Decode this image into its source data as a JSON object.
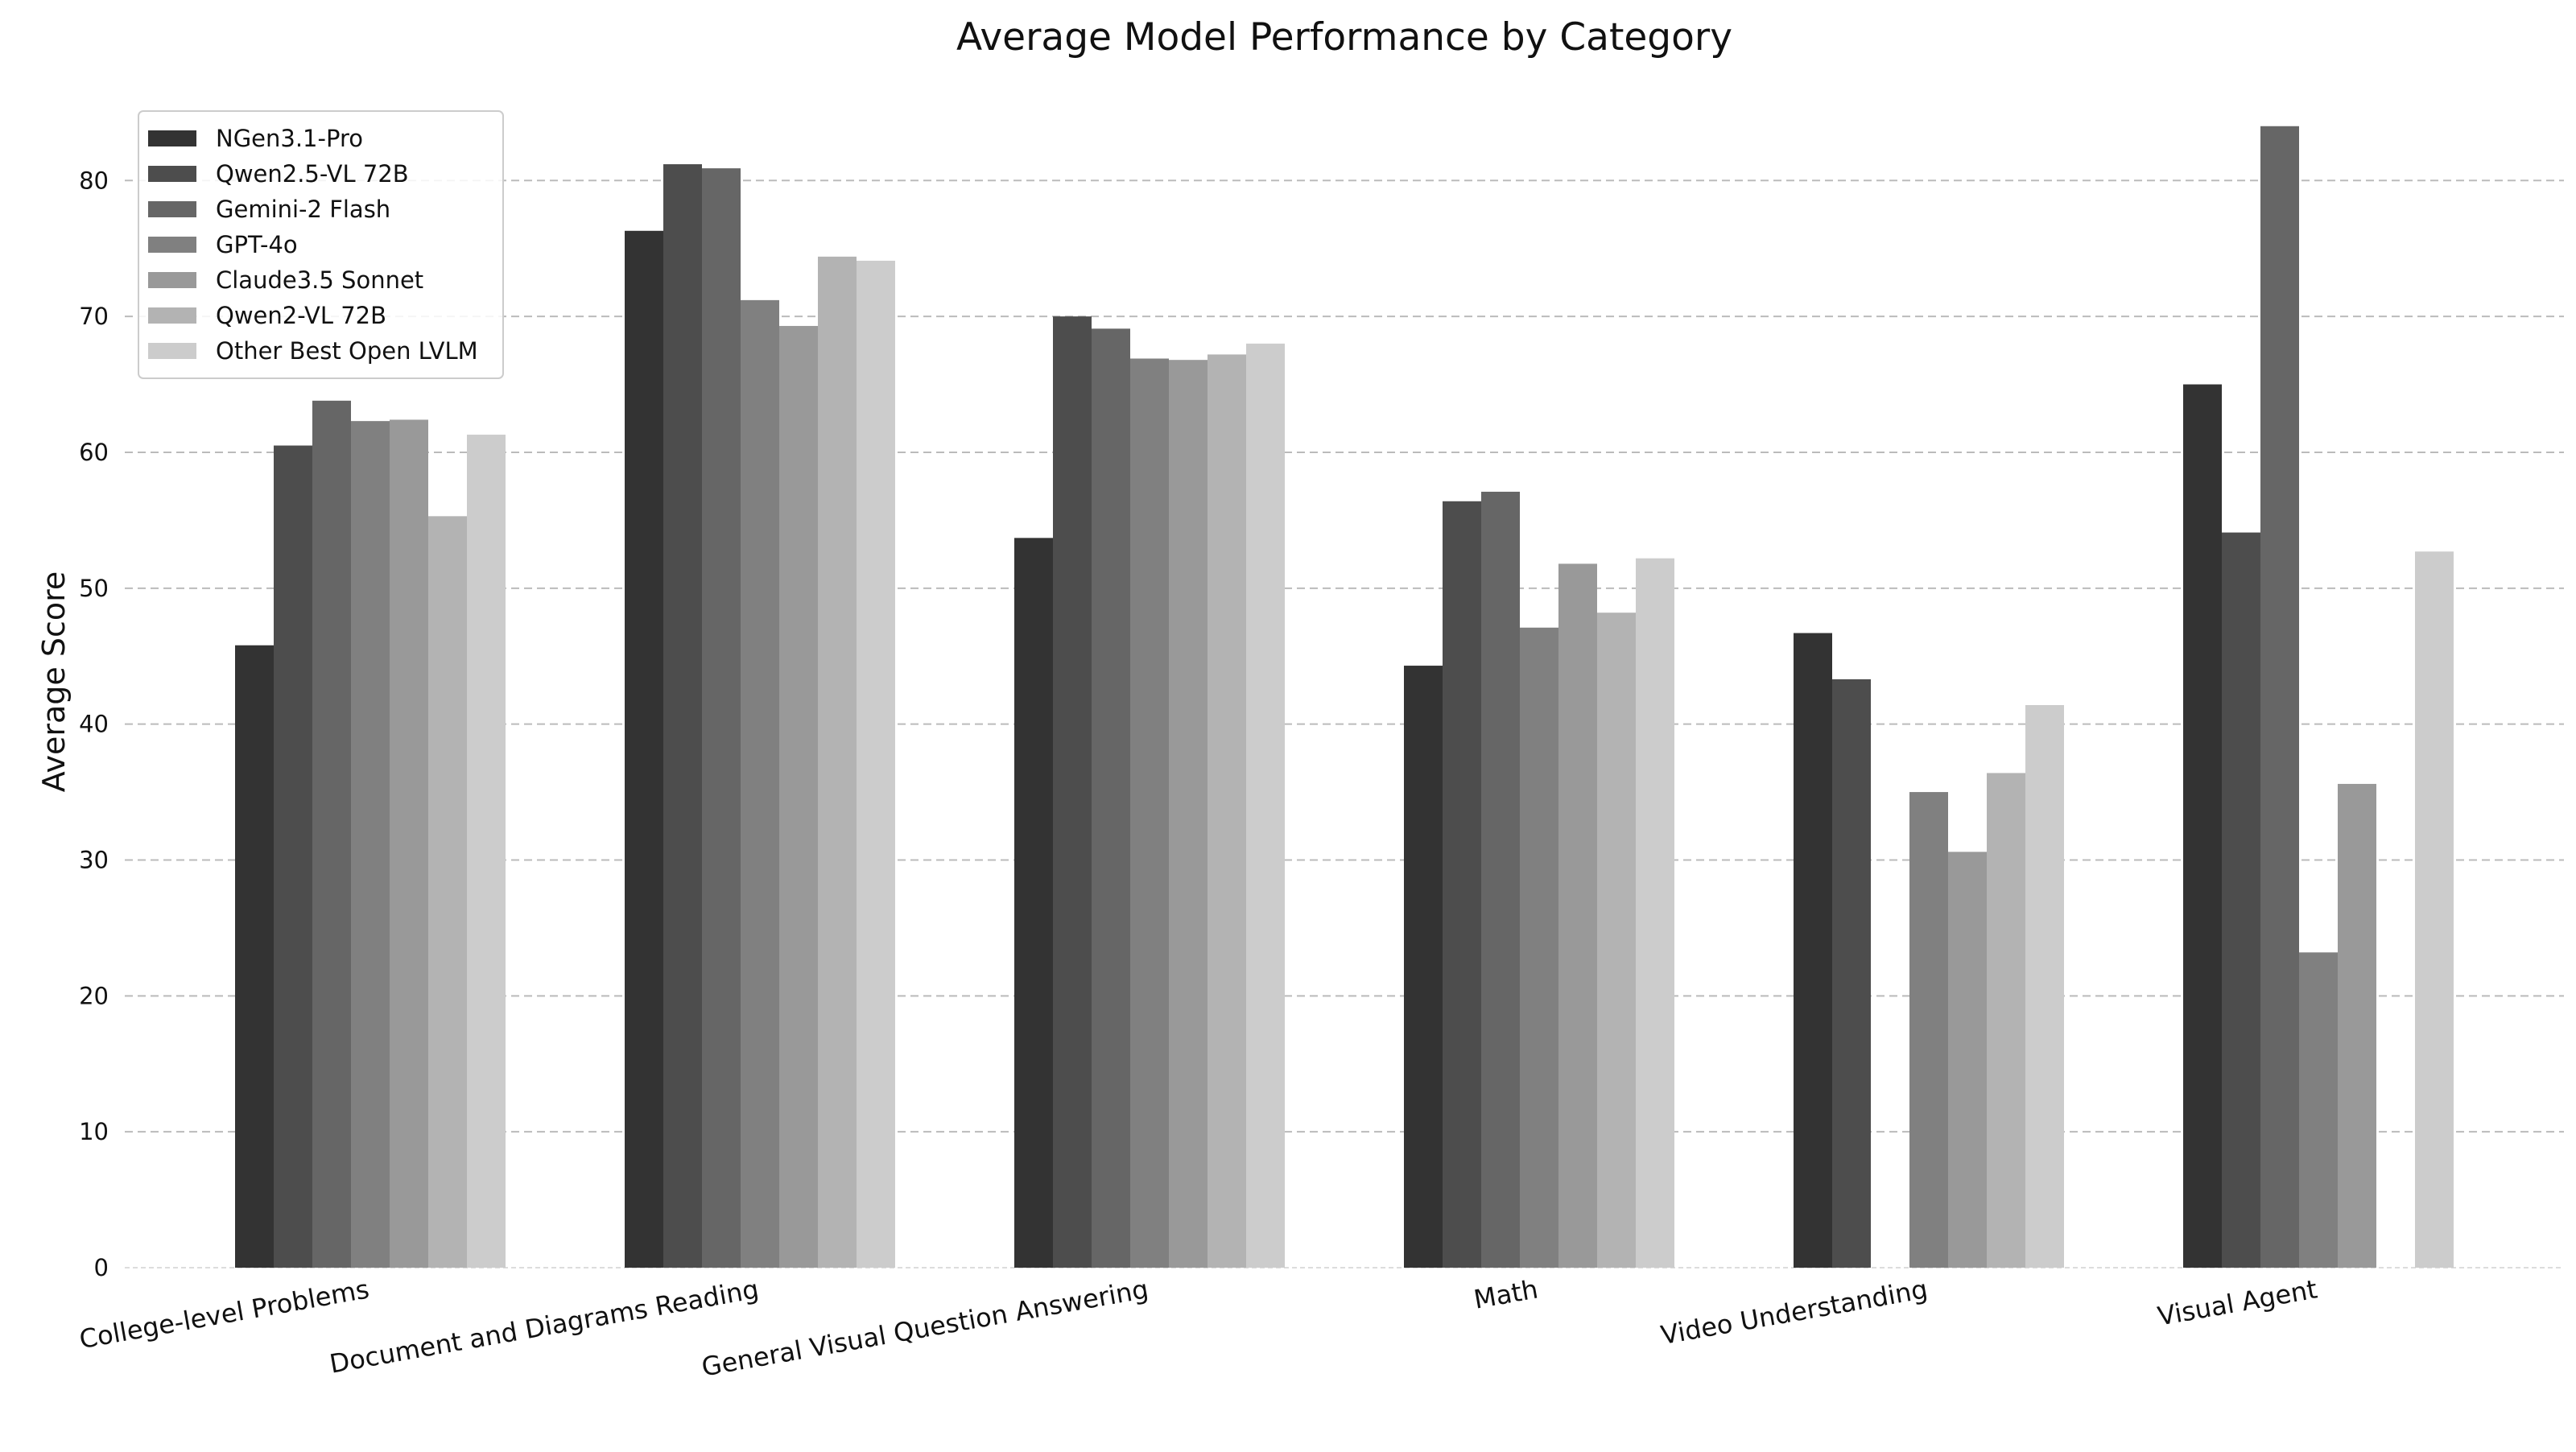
{
  "chart_data": {
    "type": "bar",
    "title": "Average Model Performance by Category",
    "xlabel": "",
    "ylabel": "Average Score",
    "ylim": [
      0,
      86
    ],
    "yticks": [
      0,
      10,
      20,
      30,
      40,
      50,
      60,
      70,
      80
    ],
    "grid": "horizontal dashed",
    "legend_position": "top-left",
    "categories": [
      "College-level Problems",
      "Document and Diagrams Reading",
      "General Visual Question Answering",
      "Math",
      "Video Understanding",
      "Visual Agent"
    ],
    "series": [
      {
        "name": "NGen3.1-Pro",
        "color": "#333333",
        "values": [
          45.8,
          76.3,
          53.7,
          44.3,
          46.7,
          65.0
        ]
      },
      {
        "name": "Qwen2.5-VL 72B",
        "color": "#4d4d4d",
        "values": [
          60.5,
          81.2,
          70.0,
          56.4,
          43.3,
          54.1
        ]
      },
      {
        "name": "Gemini-2 Flash",
        "color": "#666666",
        "values": [
          63.8,
          80.9,
          69.1,
          57.1,
          null,
          84.0
        ]
      },
      {
        "name": "GPT-4o",
        "color": "#808080",
        "values": [
          62.3,
          71.2,
          66.9,
          47.1,
          35.0,
          23.2
        ]
      },
      {
        "name": "Claude3.5 Sonnet",
        "color": "#999999",
        "values": [
          62.4,
          69.3,
          66.8,
          51.8,
          30.6,
          35.6
        ]
      },
      {
        "name": "Qwen2-VL 72B",
        "color": "#b3b3b3",
        "values": [
          55.3,
          74.4,
          67.2,
          48.2,
          36.4,
          null
        ]
      },
      {
        "name": "Other Best Open LVLM",
        "color": "#cccccc",
        "values": [
          61.3,
          74.1,
          68.0,
          52.2,
          41.4,
          52.7
        ]
      }
    ]
  }
}
